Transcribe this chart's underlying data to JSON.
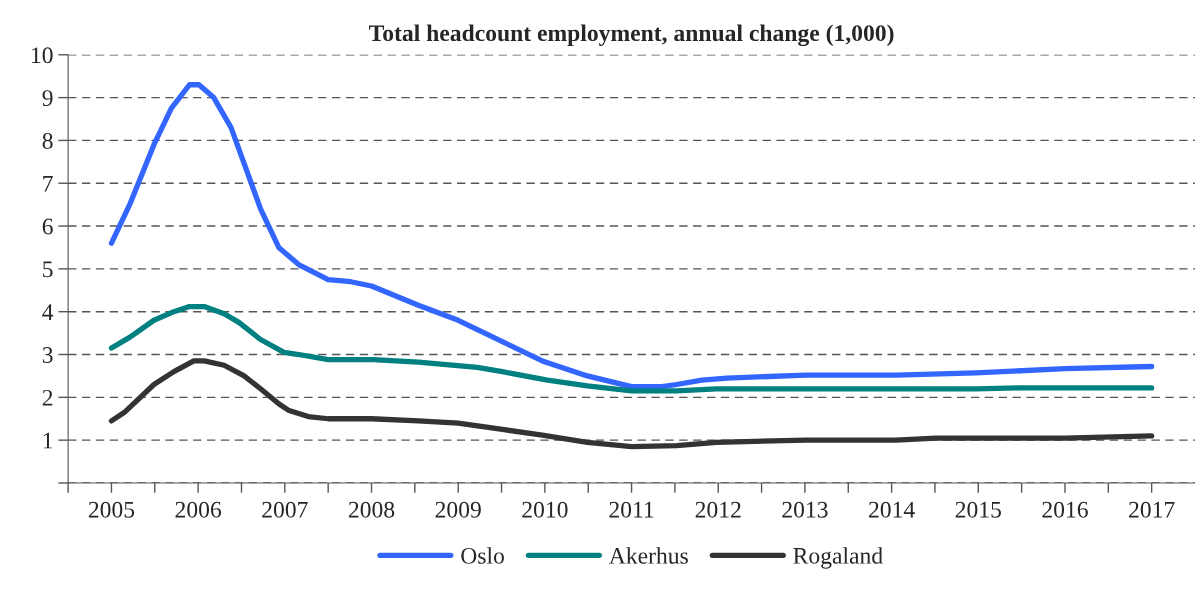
{
  "chart_data": {
    "type": "line",
    "title": "Total headcount employment, annual change (1,000)",
    "xlim": [
      2004.5,
      2017.5
    ],
    "xticks": [
      {
        "value": 2004.5,
        "label": null
      },
      {
        "value": 2005,
        "label": "2005"
      },
      {
        "value": 2005.5,
        "label": null
      },
      {
        "value": 2006,
        "label": "2006"
      },
      {
        "value": 2006.5,
        "label": null
      },
      {
        "value": 2007,
        "label": "2007"
      },
      {
        "value": 2007.5,
        "label": null
      },
      {
        "value": 2008,
        "label": "2008"
      },
      {
        "value": 2008.5,
        "label": null
      },
      {
        "value": 2009,
        "label": "2009"
      },
      {
        "value": 2009.5,
        "label": null
      },
      {
        "value": 2010,
        "label": "2010"
      },
      {
        "value": 2010.5,
        "label": null
      },
      {
        "value": 2011,
        "label": "2011"
      },
      {
        "value": 2011.5,
        "label": null
      },
      {
        "value": 2012,
        "label": "2012"
      },
      {
        "value": 2012.5,
        "label": null
      },
      {
        "value": 2013,
        "label": "2013"
      },
      {
        "value": 2013.5,
        "label": null
      },
      {
        "value": 2014,
        "label": "2014"
      },
      {
        "value": 2014.5,
        "label": null
      },
      {
        "value": 2015,
        "label": "2015"
      },
      {
        "value": 2015.5,
        "label": null
      },
      {
        "value": 2016,
        "label": "2016"
      },
      {
        "value": 2016.5,
        "label": null
      },
      {
        "value": 2017,
        "label": "2017"
      }
    ],
    "ylim": [
      0,
      10
    ],
    "yticks": [
      {
        "value": 0,
        "label": null
      },
      1,
      2,
      3,
      4,
      5,
      6,
      7,
      8,
      9,
      10
    ],
    "grid": "y",
    "legend": "bottom",
    "line_style": "solid",
    "marker": "none",
    "series": [
      {
        "name": "Oslo",
        "color": "#3366ff",
        "x": [
          2005,
          2005.21,
          2005.49,
          2005.69,
          2005.9,
          2006.01,
          2006.18,
          2006.38,
          2006.72,
          2006.93,
          2007.16,
          2007.5,
          2007.76,
          2008.0,
          2008.54,
          2009.0,
          2009.51,
          2009.97,
          2010.49,
          2011.0,
          2011.35,
          2011.52,
          2011.81,
          2012.1,
          2013.01,
          2014.05,
          2014.97,
          2016.0,
          2017.0
        ],
        "values": [
          5.6,
          6.5,
          7.9,
          8.75,
          9.3,
          9.3,
          9.0,
          8.3,
          6.4,
          5.5,
          5.1,
          4.75,
          4.7,
          4.6,
          4.15,
          3.8,
          3.3,
          2.85,
          2.5,
          2.25,
          2.25,
          2.3,
          2.4,
          2.45,
          2.52,
          2.52,
          2.57,
          2.67,
          2.72
        ]
      },
      {
        "name": "Akerhus",
        "color": "#008080",
        "x": [
          2005,
          2005.21,
          2005.49,
          2005.72,
          2005.9,
          2006.07,
          2006.3,
          2006.47,
          2006.72,
          2006.99,
          2007.16,
          2007.5,
          2008.02,
          2008.54,
          2009.22,
          2009.51,
          2010.03,
          2010.49,
          2011.0,
          2011.52,
          2011.98,
          2013.01,
          2014.97,
          2015.48,
          2017.0
        ],
        "values": [
          3.15,
          3.4,
          3.8,
          4.0,
          4.12,
          4.12,
          3.95,
          3.75,
          3.35,
          3.05,
          3.0,
          2.88,
          2.88,
          2.82,
          2.7,
          2.6,
          2.4,
          2.27,
          2.15,
          2.15,
          2.2,
          2.2,
          2.2,
          2.22,
          2.22
        ]
      },
      {
        "name": "Rogaland",
        "color": "#333333",
        "x": [
          2005,
          2005.15,
          2005.49,
          2005.72,
          2005.95,
          2006.07,
          2006.3,
          2006.53,
          2006.72,
          2006.93,
          2007.04,
          2007.27,
          2007.5,
          2008.0,
          2008.54,
          2009.0,
          2009.51,
          2009.97,
          2010.49,
          2011.0,
          2011.52,
          2011.98,
          2013.01,
          2014.05,
          2014.51,
          2016.0,
          2017.0
        ],
        "values": [
          1.45,
          1.65,
          2.3,
          2.6,
          2.85,
          2.85,
          2.75,
          2.5,
          2.2,
          1.85,
          1.7,
          1.55,
          1.5,
          1.5,
          1.45,
          1.4,
          1.25,
          1.12,
          0.95,
          0.85,
          0.87,
          0.95,
          1.0,
          1.0,
          1.05,
          1.05,
          1.1
        ]
      }
    ]
  }
}
